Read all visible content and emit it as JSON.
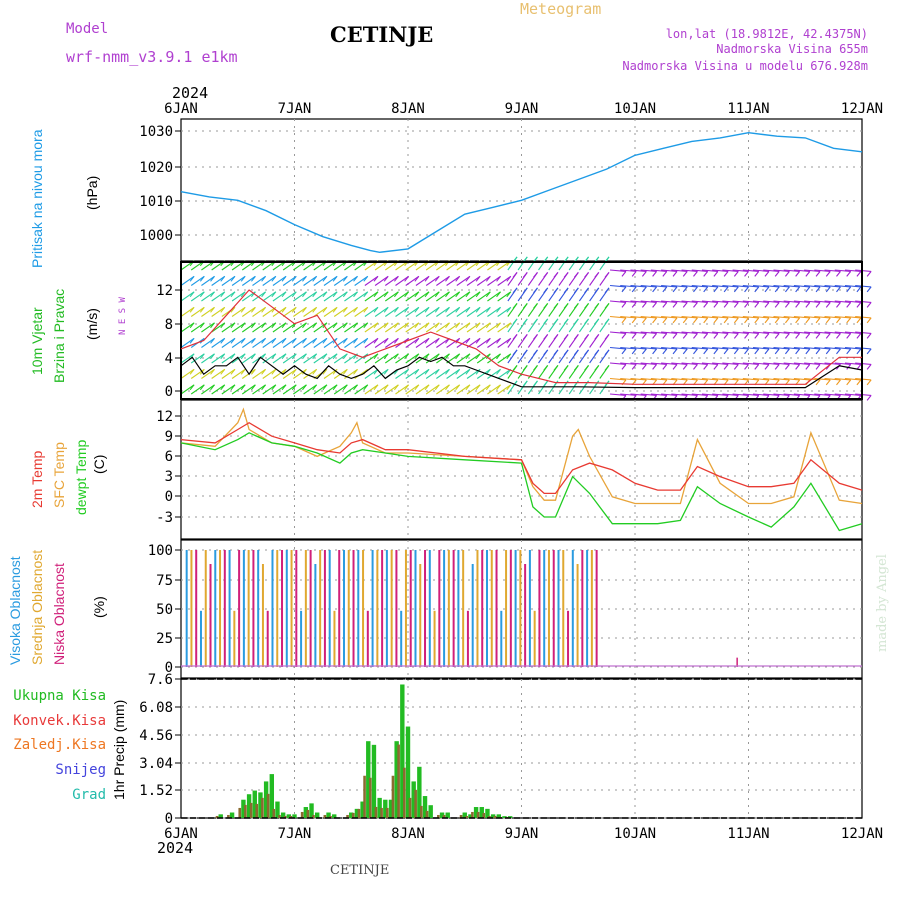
{
  "header": {
    "model_label": "Model",
    "model_name": "wrf-nmm_v3.9.1  e1km",
    "station": "CETINJE",
    "meteogram": "Meteogram",
    "lonlat": "lon,lat (18.9812E, 42.4375N)",
    "elevation": "Nadmorska Visina 655m",
    "model_elevation": "Nadmorska Visina u modelu 676.928m",
    "credit": "made by Angel",
    "footer_station": "CETINJE"
  },
  "time_axis": {
    "year": "2024",
    "ticks": [
      "6JAN",
      "7JAN",
      "8JAN",
      "9JAN",
      "10JAN",
      "11JAN",
      "12JAN"
    ],
    "range_days": [
      0,
      6
    ]
  },
  "colors": {
    "pressure": "#1e9be6",
    "wind_speed": "#000000",
    "wind_gust": "#e0303a",
    "t2m": "#e83a32",
    "tsfc": "#e8a43a",
    "dewpt": "#22cc22",
    "cloud_high": "#2a9be0",
    "cloud_mid": "#e0a830",
    "cloud_low": "#d0207a",
    "precip_total": "#22bb22",
    "precip_conv": "#e83a3a",
    "precip_frozen": "#ee7722",
    "precip_snow": "#4444dd",
    "precip_hail": "#22bbaa",
    "purple_text": "#b040d0",
    "orange_text": "#e8c070"
  },
  "chart_data": [
    {
      "id": "pressure",
      "type": "line",
      "ylabel_title": "Pritisak na nivou mora",
      "ylabel_unit": "(hPa)",
      "yticks": [
        "1000",
        "1010",
        "1020",
        "1030"
      ],
      "ylim": [
        990,
        1033
      ],
      "grid": true,
      "series": [
        {
          "x": [
            0,
            0.25,
            0.5,
            0.75,
            1,
            1.25,
            1.5,
            1.67,
            1.75,
            2,
            2.25,
            2.5,
            2.75,
            3,
            3.25,
            3.5,
            3.75,
            4,
            4.25,
            4.5,
            4.75,
            5,
            5.25,
            5.5,
            5.75,
            6
          ],
          "y": [
            1012.5,
            1011,
            1010,
            1007,
            1003,
            999.5,
            997,
            995.5,
            995,
            996,
            1001,
            1006,
            1008,
            1010,
            1013,
            1016,
            1019,
            1023,
            1025,
            1027,
            1028,
            1029.5,
            1028.5,
            1028,
            1025,
            1024
          ]
        }
      ]
    },
    {
      "id": "wind",
      "type": "line",
      "ylabel_title": "10m Vjetar Brzina i Pravac",
      "ylabel_unit": "(m/s)",
      "compass": "N E S W",
      "yticks": [
        "0",
        "4",
        "8",
        "12"
      ],
      "ylim": [
        -1,
        15
      ],
      "grid": true,
      "series": [
        {
          "x": [
            0,
            0.1,
            0.2,
            0.3,
            0.4,
            0.5,
            0.6,
            0.7,
            0.8,
            0.9,
            1,
            1.1,
            1.2,
            1.3,
            1.4,
            1.5,
            1.6,
            1.7,
            1.8,
            1.9,
            2,
            2.1,
            2.2,
            2.3,
            2.4,
            2.5,
            2.6,
            2.7,
            2.8,
            2.9,
            3,
            3.5,
            4,
            4.5,
            5,
            5.5,
            5.8,
            6
          ],
          "y": [
            3,
            4,
            2,
            3,
            3,
            4,
            2,
            4,
            3,
            2,
            3,
            2,
            1.5,
            3,
            2,
            1.5,
            2,
            3,
            1.5,
            2.5,
            3,
            4,
            3.5,
            4,
            3,
            3,
            2.5,
            2,
            1.5,
            1,
            0.5,
            0.5,
            0.4,
            0.4,
            0.4,
            0.4,
            3,
            2.5
          ]
        },
        {
          "x": [
            0,
            0.2,
            0.4,
            0.6,
            0.8,
            1,
            1.2,
            1.4,
            1.6,
            1.8,
            2,
            2.2,
            2.4,
            2.6,
            2.8,
            3,
            3.3,
            3.6,
            4,
            4.5,
            5,
            5.5,
            5.8,
            6
          ],
          "y": [
            5,
            6,
            9,
            12,
            10,
            8,
            9,
            5,
            4,
            5,
            6,
            7,
            6,
            5,
            3,
            2,
            1,
            1,
            0.8,
            0.8,
            0.8,
            0.8,
            4,
            4
          ]
        }
      ]
    },
    {
      "id": "temperature",
      "type": "line",
      "ylabel_title": "2m Temp SFC Temp dewpt Temp",
      "ylabel_unit": "(C)",
      "yticks": [
        "-3",
        "0",
        "3",
        "6",
        "9",
        "12"
      ],
      "ylim": [
        -6,
        14
      ],
      "grid": true,
      "series": [
        {
          "name": "2m Temp",
          "x": [
            0,
            0.3,
            0.5,
            0.6,
            0.8,
            1,
            1.2,
            1.4,
            1.5,
            1.6,
            1.8,
            2,
            2.5,
            3,
            3.1,
            3.2,
            3.3,
            3.45,
            3.6,
            3.8,
            4,
            4.2,
            4.4,
            4.55,
            4.75,
            5,
            5.2,
            5.4,
            5.55,
            5.8,
            6
          ],
          "y": [
            8.5,
            8,
            10,
            11,
            9,
            8,
            7,
            6.5,
            8,
            8.5,
            7,
            7,
            6,
            5.5,
            2,
            0.5,
            0.5,
            4,
            5,
            4,
            2,
            1,
            1,
            4.5,
            3,
            1.5,
            1.5,
            2,
            5.5,
            2,
            1
          ]
        },
        {
          "name": "SFC Temp",
          "x": [
            0,
            0.3,
            0.5,
            0.55,
            0.6,
            0.8,
            1,
            1.2,
            1.4,
            1.5,
            1.55,
            1.6,
            1.8,
            2,
            2.5,
            3,
            3.1,
            3.2,
            3.3,
            3.45,
            3.5,
            3.6,
            3.8,
            4,
            4.2,
            4.4,
            4.55,
            4.75,
            5,
            5.2,
            5.4,
            5.55,
            5.8,
            6
          ],
          "y": [
            8,
            7.5,
            11,
            13,
            10,
            8,
            7.5,
            6,
            7.5,
            9.5,
            11,
            8,
            6.5,
            6.5,
            6,
            5.5,
            1.5,
            -0.5,
            -0.5,
            9,
            10,
            6,
            0,
            -1,
            -1,
            -1,
            8.5,
            2,
            -1,
            -1,
            0,
            9.5,
            -0.5,
            -1
          ]
        },
        {
          "name": "dewpt Temp",
          "x": [
            0,
            0.3,
            0.5,
            0.6,
            0.8,
            1,
            1.2,
            1.4,
            1.5,
            1.6,
            1.8,
            2,
            2.5,
            3,
            3.1,
            3.2,
            3.3,
            3.45,
            3.6,
            3.8,
            4,
            4.2,
            4.4,
            4.55,
            4.75,
            5,
            5.2,
            5.4,
            5.55,
            5.8,
            6
          ],
          "y": [
            8,
            7,
            8.5,
            9.5,
            8,
            7.5,
            6.5,
            5,
            6.5,
            7,
            6.5,
            6,
            5.5,
            5,
            -1.5,
            -3,
            -3,
            3,
            0.5,
            -4,
            -4,
            -4,
            -3.5,
            1.5,
            -1,
            -3,
            -4.5,
            -1.5,
            2,
            -5,
            -4
          ]
        }
      ]
    },
    {
      "id": "clouds",
      "type": "bar",
      "ylabel_title": "Visoka Oblacnost Srednja Oblacnost Niska Oblacnost",
      "ylabel_unit": "(%)",
      "yticks": [
        "0",
        "25",
        "50",
        "75",
        "100"
      ],
      "ylim": [
        0,
        100
      ],
      "grid": true,
      "x_start": 0.05,
      "x_end": 3.7,
      "value_while_active": 100,
      "after_end": [
        {
          "x": 4.9,
          "value": 8
        }
      ]
    },
    {
      "id": "precip",
      "type": "bar",
      "ylabel_title": "1hr Precip (mm)",
      "legend": [
        "Ukupna Kisa",
        "Konvek.Kisa",
        "Zaledj.Kisa",
        "Snijeg",
        "Grad"
      ],
      "yticks": [
        "0",
        "1.52",
        "3.04",
        "4.56",
        "6.08",
        "7.6"
      ],
      "ylim": [
        0,
        7.6
      ],
      "grid": true,
      "x": [
        0.35,
        0.45,
        0.55,
        0.6,
        0.65,
        0.7,
        0.75,
        0.8,
        0.85,
        0.9,
        0.95,
        1.0,
        1.1,
        1.15,
        1.2,
        1.3,
        1.35,
        1.5,
        1.55,
        1.6,
        1.65,
        1.7,
        1.75,
        1.8,
        1.85,
        1.9,
        1.95,
        2.0,
        2.05,
        2.1,
        2.15,
        2.2,
        2.3,
        2.35,
        2.5,
        2.55,
        2.6,
        2.65,
        2.7,
        2.75,
        2.8,
        2.85,
        2.9
      ],
      "values": [
        0.2,
        0.3,
        1.0,
        1.3,
        1.5,
        1.4,
        2.0,
        2.4,
        0.9,
        0.3,
        0.2,
        0.2,
        0.6,
        0.8,
        0.3,
        0.3,
        0.2,
        0.3,
        0.5,
        0.9,
        4.2,
        4.0,
        1.1,
        1.0,
        1.0,
        4.2,
        7.3,
        5.0,
        2.0,
        2.8,
        1.2,
        0.7,
        0.3,
        0.3,
        0.3,
        0.2,
        0.6,
        0.6,
        0.5,
        0.2,
        0.2,
        0.1,
        0.1
      ]
    }
  ]
}
